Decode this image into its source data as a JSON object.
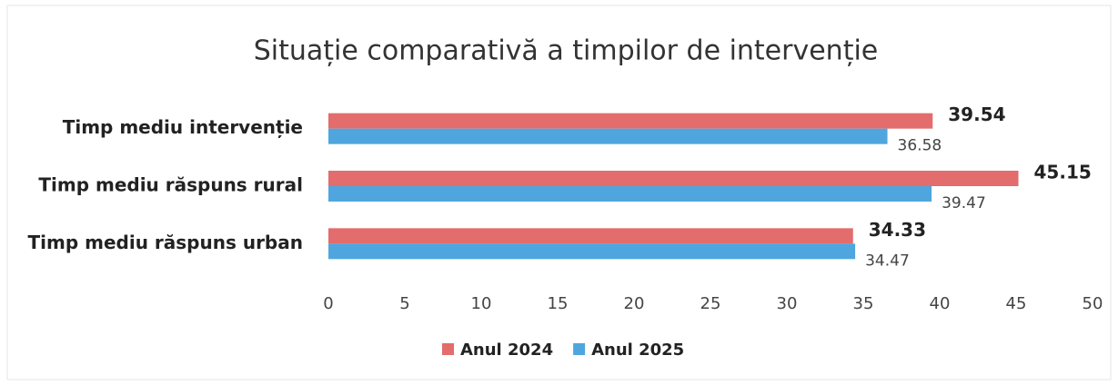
{
  "chart_data": {
    "type": "bar",
    "orientation": "horizontal",
    "title": "Situație comparativă a timpilor de intervenție",
    "categories": [
      "Timp mediu intervenție",
      "Timp mediu răspuns rural",
      "Timp mediu răspuns urban"
    ],
    "series": [
      {
        "name": "Anul 2024",
        "color": "#e36c6c",
        "values": [
          39.54,
          45.15,
          34.33
        ]
      },
      {
        "name": "Anul 2025",
        "color": "#4fa6de",
        "values": [
          36.58,
          39.47,
          34.47
        ]
      }
    ],
    "xlim": [
      0,
      50
    ],
    "xticks": [
      0,
      5,
      10,
      15,
      20,
      25,
      30,
      35,
      40,
      45,
      50
    ],
    "grid": false,
    "legend": "bottom"
  }
}
